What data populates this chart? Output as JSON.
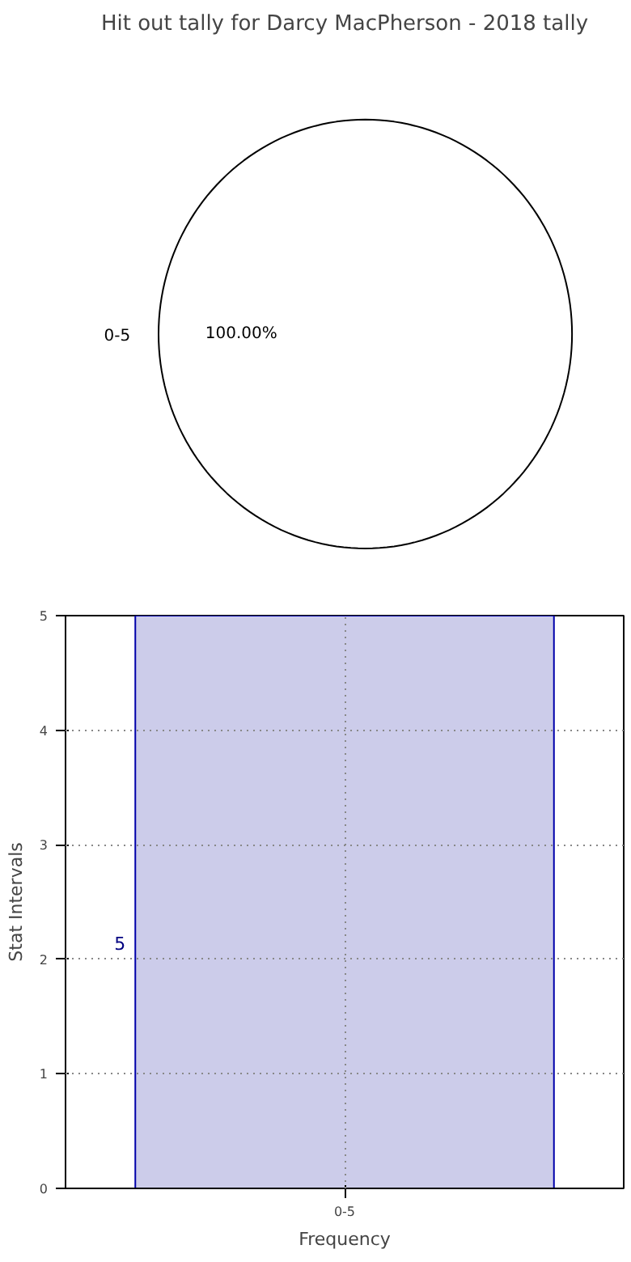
{
  "chart_data": [
    {
      "type": "pie",
      "title": "Hit out tally for Darcy MacPherson - 2018 tally",
      "categories": [
        "0-5"
      ],
      "values": [
        100
      ],
      "colors": [
        "#ffffff"
      ],
      "value_labels": [
        "100.00%"
      ]
    },
    {
      "type": "bar",
      "categories": [
        "0-5"
      ],
      "values": [
        5
      ],
      "color": "#ccccea",
      "value_labels": [
        "5"
      ],
      "xlabel": "Frequency",
      "ylabel": "Stat Intervals",
      "ylim": [
        0,
        5
      ],
      "yticks": [
        0,
        1,
        2,
        3,
        4,
        5
      ],
      "grid": true
    }
  ]
}
